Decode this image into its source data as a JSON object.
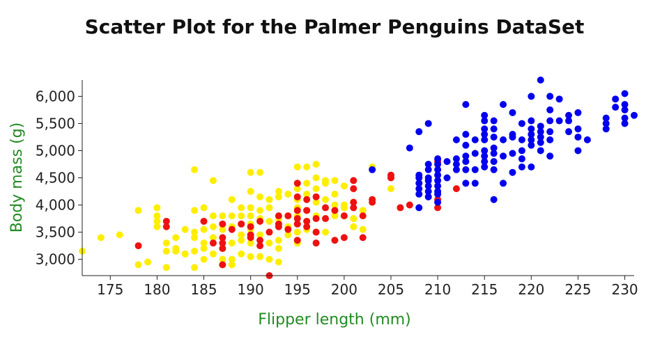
{
  "chart_data": {
    "type": "scatter",
    "title": "Scatter Plot for the Palmer Penguins DataSet",
    "xlabel": "Flipper length (mm)",
    "ylabel": "Body mass (g)",
    "xlim": [
      172,
      231
    ],
    "ylim": [
      2700,
      6300
    ],
    "x_ticks": [
      175,
      180,
      185,
      190,
      195,
      200,
      205,
      210,
      215,
      220,
      225,
      230
    ],
    "y_ticks": [
      3000,
      3500,
      4000,
      4500,
      5000,
      5500,
      6000
    ],
    "x_tick_labels": [
      "175",
      "180",
      "185",
      "190",
      "195",
      "200",
      "205",
      "210",
      "215",
      "220",
      "225",
      "230"
    ],
    "y_tick_labels": [
      "3,000",
      "3,500",
      "4,000",
      "4,500",
      "5,000",
      "5,500",
      "6,000"
    ],
    "grid": false,
    "colors": {
      "title": "#111111",
      "axis_title": "#228b22",
      "axis": "#222222"
    },
    "series": [
      {
        "color": "#ffee00",
        "points": [
          [
            172,
            3150
          ],
          [
            174,
            3400
          ],
          [
            176,
            3450
          ],
          [
            178,
            3900
          ],
          [
            178,
            2900
          ],
          [
            179,
            2950
          ],
          [
            180,
            3950
          ],
          [
            180,
            3800
          ],
          [
            180,
            3700
          ],
          [
            180,
            3600
          ],
          [
            181,
            3300
          ],
          [
            181,
            2850
          ],
          [
            181,
            3150
          ],
          [
            182,
            3200
          ],
          [
            182,
            3150
          ],
          [
            182,
            3400
          ],
          [
            183,
            3550
          ],
          [
            183,
            3100
          ],
          [
            184,
            4650
          ],
          [
            184,
            3900
          ],
          [
            184,
            3500
          ],
          [
            184,
            3400
          ],
          [
            184,
            3150
          ],
          [
            184,
            2850
          ],
          [
            185,
            3950
          ],
          [
            185,
            3700
          ],
          [
            185,
            3550
          ],
          [
            185,
            3300
          ],
          [
            185,
            3200
          ],
          [
            185,
            3000
          ],
          [
            186,
            4450
          ],
          [
            186,
            3800
          ],
          [
            186,
            3600
          ],
          [
            186,
            3400
          ],
          [
            186,
            3100
          ],
          [
            187,
            3800
          ],
          [
            187,
            3550
          ],
          [
            187,
            3200
          ],
          [
            187,
            3000
          ],
          [
            187,
            2900
          ],
          [
            188,
            4100
          ],
          [
            188,
            3800
          ],
          [
            188,
            3600
          ],
          [
            188,
            3300
          ],
          [
            188,
            3000
          ],
          [
            188,
            2900
          ],
          [
            189,
            3950
          ],
          [
            189,
            3800
          ],
          [
            189,
            3650
          ],
          [
            189,
            3450
          ],
          [
            189,
            3350
          ],
          [
            189,
            3100
          ],
          [
            190,
            4600
          ],
          [
            190,
            4250
          ],
          [
            190,
            3950
          ],
          [
            190,
            3800
          ],
          [
            190,
            3650
          ],
          [
            190,
            3550
          ],
          [
            190,
            3300
          ],
          [
            190,
            3050
          ],
          [
            191,
            4600
          ],
          [
            191,
            4150
          ],
          [
            191,
            3900
          ],
          [
            191,
            3750
          ],
          [
            191,
            3450
          ],
          [
            191,
            3050
          ],
          [
            192,
            4100
          ],
          [
            192,
            3950
          ],
          [
            192,
            3700
          ],
          [
            192,
            3500
          ],
          [
            192,
            3300
          ],
          [
            192,
            3000
          ],
          [
            193,
            4250
          ],
          [
            193,
            4150
          ],
          [
            193,
            3750
          ],
          [
            193,
            3350
          ],
          [
            193,
            3200
          ],
          [
            193,
            2950
          ],
          [
            194,
            4200
          ],
          [
            194,
            3800
          ],
          [
            194,
            3600
          ],
          [
            194,
            3450
          ],
          [
            195,
            4700
          ],
          [
            195,
            4300
          ],
          [
            195,
            4100
          ],
          [
            195,
            3950
          ],
          [
            195,
            3800
          ],
          [
            195,
            3650
          ],
          [
            195,
            3500
          ],
          [
            195,
            3300
          ],
          [
            196,
            4700
          ],
          [
            196,
            4400
          ],
          [
            196,
            4200
          ],
          [
            196,
            3900
          ],
          [
            196,
            3700
          ],
          [
            196,
            3550
          ],
          [
            197,
            4750
          ],
          [
            197,
            4500
          ],
          [
            197,
            4300
          ],
          [
            197,
            4050
          ],
          [
            197,
            3800
          ],
          [
            197,
            3500
          ],
          [
            198,
            4450
          ],
          [
            198,
            4400
          ],
          [
            198,
            4100
          ],
          [
            198,
            3750
          ],
          [
            198,
            3500
          ],
          [
            199,
            4450
          ],
          [
            199,
            4200
          ],
          [
            199,
            4000
          ],
          [
            199,
            3800
          ],
          [
            200,
            4350
          ],
          [
            200,
            4000
          ],
          [
            200,
            3950
          ],
          [
            200,
            3800
          ],
          [
            201,
            4050
          ],
          [
            201,
            3750
          ],
          [
            201,
            3600
          ],
          [
            202,
            3900
          ],
          [
            202,
            3550
          ],
          [
            203,
            4700
          ],
          [
            203,
            4100
          ],
          [
            205,
            4300
          ]
        ]
      },
      {
        "color": "#ee1111",
        "points": [
          [
            178,
            3250
          ],
          [
            181,
            3700
          ],
          [
            181,
            3600
          ],
          [
            185,
            3700
          ],
          [
            186,
            3300
          ],
          [
            187,
            3650
          ],
          [
            187,
            3400
          ],
          [
            187,
            3300
          ],
          [
            187,
            3200
          ],
          [
            187,
            2900
          ],
          [
            188,
            3550
          ],
          [
            189,
            3650
          ],
          [
            190,
            3600
          ],
          [
            190,
            3450
          ],
          [
            190,
            3400
          ],
          [
            191,
            3700
          ],
          [
            191,
            3350
          ],
          [
            191,
            3250
          ],
          [
            192,
            3500
          ],
          [
            192,
            2700
          ],
          [
            193,
            3800
          ],
          [
            193,
            3650
          ],
          [
            193,
            3600
          ],
          [
            194,
            3800
          ],
          [
            194,
            3550
          ],
          [
            195,
            4400
          ],
          [
            195,
            4150
          ],
          [
            195,
            3900
          ],
          [
            195,
            3750
          ],
          [
            195,
            3650
          ],
          [
            195,
            3350
          ],
          [
            196,
            4100
          ],
          [
            196,
            3900
          ],
          [
            196,
            3700
          ],
          [
            196,
            3600
          ],
          [
            197,
            4150
          ],
          [
            197,
            3750
          ],
          [
            197,
            3500
          ],
          [
            197,
            3300
          ],
          [
            198,
            3950
          ],
          [
            198,
            3750
          ],
          [
            199,
            3900
          ],
          [
            199,
            3350
          ],
          [
            200,
            3800
          ],
          [
            200,
            3400
          ],
          [
            201,
            4450
          ],
          [
            201,
            4300
          ],
          [
            201,
            4050
          ],
          [
            201,
            3950
          ],
          [
            202,
            3800
          ],
          [
            202,
            3400
          ],
          [
            203,
            4100
          ],
          [
            203,
            4050
          ],
          [
            205,
            4550
          ],
          [
            205,
            4500
          ],
          [
            206,
            3950
          ],
          [
            207,
            4000
          ],
          [
            210,
            4800
          ],
          [
            210,
            4100
          ],
          [
            210,
            3950
          ],
          [
            212,
            4300
          ]
        ]
      },
      {
        "color": "#0000ee",
        "points": [
          [
            203,
            4650
          ],
          [
            207,
            5050
          ],
          [
            208,
            5350
          ],
          [
            208,
            4550
          ],
          [
            208,
            4500
          ],
          [
            208,
            4400
          ],
          [
            208,
            4300
          ],
          [
            208,
            4200
          ],
          [
            208,
            3950
          ],
          [
            209,
            5500
          ],
          [
            209,
            4750
          ],
          [
            209,
            4650
          ],
          [
            209,
            4500
          ],
          [
            209,
            4450
          ],
          [
            209,
            4350
          ],
          [
            209,
            4250
          ],
          [
            209,
            4150
          ],
          [
            210,
            4850
          ],
          [
            210,
            4750
          ],
          [
            210,
            4650
          ],
          [
            210,
            4550
          ],
          [
            210,
            4450
          ],
          [
            210,
            4350
          ],
          [
            210,
            4250
          ],
          [
            210,
            4200
          ],
          [
            210,
            4050
          ],
          [
            211,
            4500
          ],
          [
            211,
            4800
          ],
          [
            212,
            5200
          ],
          [
            212,
            4850
          ],
          [
            212,
            4750
          ],
          [
            212,
            4650
          ],
          [
            213,
            5850
          ],
          [
            213,
            5300
          ],
          [
            213,
            5100
          ],
          [
            213,
            4900
          ],
          [
            213,
            4800
          ],
          [
            213,
            4650
          ],
          [
            213,
            4400
          ],
          [
            214,
            5200
          ],
          [
            214,
            4950
          ],
          [
            214,
            4650
          ],
          [
            214,
            4400
          ],
          [
            215,
            5650
          ],
          [
            215,
            5550
          ],
          [
            215,
            5400
          ],
          [
            215,
            5300
          ],
          [
            215,
            5200
          ],
          [
            215,
            5000
          ],
          [
            215,
            4900
          ],
          [
            215,
            4800
          ],
          [
            215,
            4700
          ],
          [
            216,
            5550
          ],
          [
            216,
            5400
          ],
          [
            216,
            5250
          ],
          [
            216,
            5050
          ],
          [
            216,
            4950
          ],
          [
            216,
            4800
          ],
          [
            216,
            4650
          ],
          [
            216,
            4100
          ],
          [
            217,
            5850
          ],
          [
            217,
            5200
          ],
          [
            217,
            4900
          ],
          [
            217,
            4400
          ],
          [
            218,
            5700
          ],
          [
            218,
            5300
          ],
          [
            218,
            5250
          ],
          [
            218,
            4950
          ],
          [
            218,
            4600
          ],
          [
            219,
            5500
          ],
          [
            219,
            5200
          ],
          [
            219,
            5000
          ],
          [
            219,
            4850
          ],
          [
            219,
            4700
          ],
          [
            220,
            6000
          ],
          [
            220,
            5550
          ],
          [
            220,
            5400
          ],
          [
            220,
            5300
          ],
          [
            220,
            5200
          ],
          [
            220,
            5100
          ],
          [
            220,
            4700
          ],
          [
            221,
            6300
          ],
          [
            221,
            5450
          ],
          [
            221,
            5350
          ],
          [
            221,
            5250
          ],
          [
            221,
            5150
          ],
          [
            221,
            5000
          ],
          [
            222,
            6000
          ],
          [
            222,
            5750
          ],
          [
            222,
            5550
          ],
          [
            222,
            5350
          ],
          [
            222,
            5200
          ],
          [
            222,
            4900
          ],
          [
            223,
            5950
          ],
          [
            223,
            5550
          ],
          [
            224,
            5650
          ],
          [
            224,
            5550
          ],
          [
            224,
            5350
          ],
          [
            225,
            5700
          ],
          [
            225,
            5400
          ],
          [
            225,
            5250
          ],
          [
            225,
            5000
          ],
          [
            226,
            5200
          ],
          [
            228,
            5600
          ],
          [
            228,
            5500
          ],
          [
            228,
            5400
          ],
          [
            229,
            5950
          ],
          [
            229,
            5800
          ],
          [
            230,
            6050
          ],
          [
            230,
            5850
          ],
          [
            230,
            5750
          ],
          [
            230,
            5600
          ],
          [
            230,
            5500
          ],
          [
            231,
            5650
          ]
        ]
      }
    ]
  }
}
